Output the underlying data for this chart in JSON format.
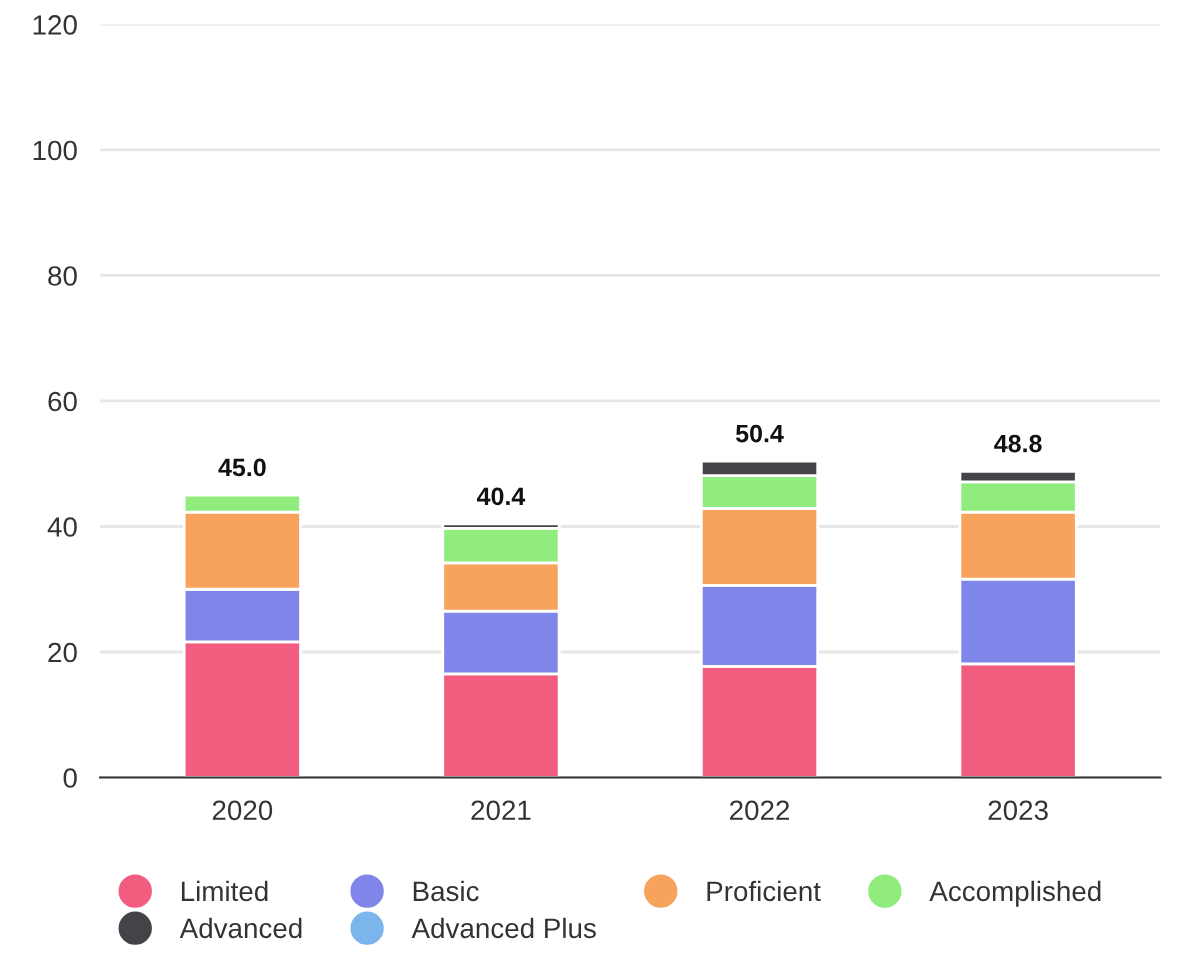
{
  "chart_data": {
    "type": "bar",
    "stacked": true,
    "categories": [
      "2020",
      "2021",
      "2022",
      "2023"
    ],
    "series": [
      {
        "name": "Limited",
        "color": "#f25c7f",
        "values": [
          21.6,
          16.5,
          17.7,
          18.1
        ]
      },
      {
        "name": "Basic",
        "color": "#8085e9",
        "values": [
          8.4,
          10.0,
          12.9,
          13.5
        ]
      },
      {
        "name": "Proficient",
        "color": "#f7a35c",
        "values": [
          12.3,
          7.7,
          12.3,
          10.7
        ]
      },
      {
        "name": "Accomplished",
        "color": "#90ed7d",
        "values": [
          2.7,
          5.5,
          5.2,
          4.8
        ]
      },
      {
        "name": "Advanced",
        "color": "#434348",
        "values": [
          null,
          0.7,
          2.3,
          1.7
        ]
      },
      {
        "name": "Advanced Plus",
        "color": "#7cb5ec",
        "values": [
          null,
          null,
          null,
          null
        ]
      }
    ],
    "totals": [
      "45.0",
      "40.4",
      "50.4",
      "48.8"
    ],
    "ylim": [
      0,
      120
    ],
    "yticks": [
      0,
      20,
      40,
      60,
      80,
      100,
      120
    ],
    "grid": "y",
    "legend": "bottom"
  }
}
